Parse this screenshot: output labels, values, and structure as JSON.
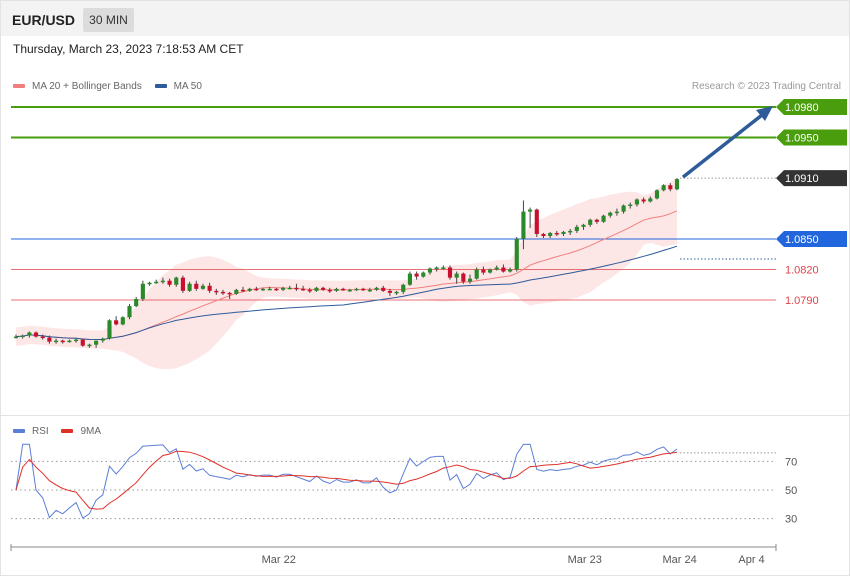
{
  "header": {
    "symbol": "EUR/USD",
    "interval": "30 MIN",
    "datetime": "Thursday, March 23, 2023 7:18:53 AM CET"
  },
  "legend": {
    "price": [
      {
        "label": "MA 20 + Bollinger Bands",
        "color": "#f08080"
      },
      {
        "label": "MA 50",
        "color": "#2e5b9a"
      }
    ],
    "rsi": [
      {
        "label": "RSI",
        "color": "#5b7fd6"
      },
      {
        "label": "9MA",
        "color": "#e0302a"
      }
    ],
    "credit": "Research © 2023 Trading Central"
  },
  "chart_data": {
    "type": "candlestick",
    "price_range": [
      1.0725,
      1.0995
    ],
    "levels": [
      {
        "value": 1.098,
        "label": "1.0980",
        "kind": "resistance",
        "color": "#4a9e0e"
      },
      {
        "value": 1.095,
        "label": "1.0950",
        "kind": "resistance",
        "color": "#4a9e0e"
      },
      {
        "value": 1.091,
        "label": "1.0910",
        "kind": "current",
        "color": "#333333"
      },
      {
        "value": 1.085,
        "label": "1.0850",
        "kind": "pivot",
        "color": "#2266dd"
      },
      {
        "value": 1.082,
        "label": "1.0820",
        "kind": "support",
        "color": "#e2424a"
      },
      {
        "value": 1.079,
        "label": "1.0790",
        "kind": "support",
        "color": "#e2424a"
      }
    ],
    "target_arrow": {
      "from": 1.091,
      "to": 1.098
    },
    "candles": [
      [
        1.0754,
        1.0756,
        1.0752,
        1.0754
      ],
      [
        1.0754,
        1.0756,
        1.0752,
        1.0755
      ],
      [
        1.0755,
        1.0759,
        1.0753,
        1.0758
      ],
      [
        1.0758,
        1.0759,
        1.0753,
        1.0754
      ],
      [
        1.0754,
        1.0756,
        1.0751,
        1.0753
      ],
      [
        1.0753,
        1.0755,
        1.0747,
        1.0749
      ],
      [
        1.0749,
        1.0752,
        1.0747,
        1.075
      ],
      [
        1.075,
        1.0751,
        1.0747,
        1.0749
      ],
      [
        1.0749,
        1.0751,
        1.0748,
        1.075
      ],
      [
        1.075,
        1.0752,
        1.0748,
        1.0751
      ],
      [
        1.0751,
        1.0752,
        1.0744,
        1.0745
      ],
      [
        1.0745,
        1.0747,
        1.0743,
        1.0746
      ],
      [
        1.0746,
        1.075,
        1.0743,
        1.075
      ],
      [
        1.075,
        1.0753,
        1.0748,
        1.0752
      ],
      [
        1.0752,
        1.0771,
        1.0751,
        1.077
      ],
      [
        1.077,
        1.0774,
        1.0765,
        1.0766
      ],
      [
        1.0766,
        1.0774,
        1.0765,
        1.0773
      ],
      [
        1.0773,
        1.0786,
        1.0771,
        1.0784
      ],
      [
        1.0784,
        1.0793,
        1.0783,
        1.0791
      ],
      [
        1.0791,
        1.0809,
        1.0789,
        1.0806
      ],
      [
        1.0806,
        1.0808,
        1.0804,
        1.0807
      ],
      [
        1.0807,
        1.081,
        1.0806,
        1.0808
      ],
      [
        1.0808,
        1.0812,
        1.0806,
        1.0809
      ],
      [
        1.0809,
        1.0811,
        1.0803,
        1.0805
      ],
      [
        1.0805,
        1.0813,
        1.0803,
        1.0812
      ],
      [
        1.0812,
        1.0814,
        1.0797,
        1.0799
      ],
      [
        1.0799,
        1.0808,
        1.0798,
        1.0806
      ],
      [
        1.0806,
        1.0809,
        1.0799,
        1.0801
      ],
      [
        1.0801,
        1.0806,
        1.08,
        1.0804
      ],
      [
        1.0804,
        1.0807,
        1.0797,
        1.0799
      ],
      [
        1.0799,
        1.0801,
        1.0795,
        1.0798
      ],
      [
        1.0798,
        1.08,
        1.0795,
        1.0797
      ],
      [
        1.0797,
        1.0798,
        1.0791,
        1.0796
      ],
      [
        1.0796,
        1.0801,
        1.0795,
        1.08
      ],
      [
        1.08,
        1.0803,
        1.0798,
        1.0799
      ],
      [
        1.0799,
        1.0802,
        1.0798,
        1.0801
      ],
      [
        1.0801,
        1.0803,
        1.0799,
        1.08
      ],
      [
        1.08,
        1.0802,
        1.0799,
        1.0801
      ],
      [
        1.0801,
        1.0803,
        1.08,
        1.0801
      ],
      [
        1.0801,
        1.0802,
        1.0799,
        1.08
      ],
      [
        1.08,
        1.0803,
        1.0799,
        1.0802
      ],
      [
        1.0802,
        1.0804,
        1.0801,
        1.0802
      ],
      [
        1.0802,
        1.0806,
        1.0799,
        1.0801
      ],
      [
        1.0801,
        1.0804,
        1.0799,
        1.08
      ],
      [
        1.08,
        1.0802,
        1.0797,
        1.0799
      ],
      [
        1.0799,
        1.0803,
        1.0798,
        1.0802
      ],
      [
        1.0802,
        1.0803,
        1.0799,
        1.08
      ],
      [
        1.08,
        1.0802,
        1.0797,
        1.0799
      ],
      [
        1.0799,
        1.0802,
        1.0798,
        1.0801
      ],
      [
        1.0801,
        1.0802,
        1.0799,
        1.08
      ],
      [
        1.08,
        1.0801,
        1.0798,
        1.08
      ],
      [
        1.08,
        1.0802,
        1.0799,
        1.0801
      ],
      [
        1.0801,
        1.0802,
        1.0799,
        1.08
      ],
      [
        1.08,
        1.0802,
        1.0798,
        1.08
      ],
      [
        1.08,
        1.0803,
        1.0799,
        1.0802
      ],
      [
        1.0802,
        1.0804,
        1.0798,
        1.0799
      ],
      [
        1.0799,
        1.0801,
        1.0794,
        1.0797
      ],
      [
        1.0797,
        1.0799,
        1.0795,
        1.0798
      ],
      [
        1.0798,
        1.0806,
        1.0796,
        1.0805
      ],
      [
        1.0805,
        1.0818,
        1.0804,
        1.0816
      ],
      [
        1.0816,
        1.0818,
        1.081,
        1.0813
      ],
      [
        1.0813,
        1.0818,
        1.0812,
        1.0817
      ],
      [
        1.0817,
        1.0822,
        1.0815,
        1.0821
      ],
      [
        1.0821,
        1.0823,
        1.0818,
        1.0822
      ],
      [
        1.0822,
        1.0824,
        1.082,
        1.0822
      ],
      [
        1.0822,
        1.0824,
        1.081,
        1.0812
      ],
      [
        1.0812,
        1.0818,
        1.0806,
        1.0816
      ],
      [
        1.0816,
        1.0817,
        1.0806,
        1.0808
      ],
      [
        1.0808,
        1.0815,
        1.0806,
        1.0811
      ],
      [
        1.0811,
        1.0822,
        1.081,
        1.082
      ],
      [
        1.082,
        1.0823,
        1.0815,
        1.0817
      ],
      [
        1.0817,
        1.0821,
        1.0816,
        1.082
      ],
      [
        1.082,
        1.0824,
        1.0819,
        1.0822
      ],
      [
        1.0822,
        1.0825,
        1.0817,
        1.0818
      ],
      [
        1.0818,
        1.0822,
        1.0817,
        1.082
      ],
      [
        1.082,
        1.0852,
        1.0818,
        1.085
      ],
      [
        1.085,
        1.0888,
        1.084,
        1.0877
      ],
      [
        1.0877,
        1.0881,
        1.0861,
        1.0879
      ],
      [
        1.0879,
        1.088,
        1.0852,
        1.0855
      ],
      [
        1.0855,
        1.0856,
        1.0851,
        1.0853
      ],
      [
        1.0853,
        1.0857,
        1.0851,
        1.0856
      ],
      [
        1.0856,
        1.0858,
        1.0853,
        1.0855
      ],
      [
        1.0855,
        1.0858,
        1.0853,
        1.0857
      ],
      [
        1.0857,
        1.086,
        1.0854,
        1.0858
      ],
      [
        1.0858,
        1.0864,
        1.0856,
        1.0862
      ],
      [
        1.0862,
        1.0865,
        1.0859,
        1.0864
      ],
      [
        1.0864,
        1.087,
        1.0862,
        1.0869
      ],
      [
        1.0869,
        1.087,
        1.0865,
        1.0867
      ],
      [
        1.0867,
        1.0874,
        1.0866,
        1.0873
      ],
      [
        1.0873,
        1.0877,
        1.0871,
        1.0876
      ],
      [
        1.0876,
        1.088,
        1.0873,
        1.0877
      ],
      [
        1.0877,
        1.0884,
        1.0875,
        1.0883
      ],
      [
        1.0883,
        1.0886,
        1.088,
        1.0884
      ],
      [
        1.0884,
        1.089,
        1.0882,
        1.0889
      ],
      [
        1.0889,
        1.0891,
        1.0885,
        1.0887
      ],
      [
        1.0887,
        1.0892,
        1.0886,
        1.089
      ],
      [
        1.089,
        1.0899,
        1.0889,
        1.0898
      ],
      [
        1.0898,
        1.0904,
        1.0897,
        1.0903
      ],
      [
        1.0903,
        1.0905,
        1.0897,
        1.0899
      ],
      [
        1.0899,
        1.091,
        1.0898,
        1.0909
      ]
    ],
    "rsi": {
      "levels": [
        70,
        50,
        30
      ],
      "range": [
        15,
        85
      ]
    },
    "x_labels": [
      {
        "label": "Mar 22",
        "pos": 0.35
      },
      {
        "label": "Mar 23",
        "pos": 0.75
      },
      {
        "label": "Mar 24",
        "pos": 0.874
      },
      {
        "label": "Apr 4",
        "pos": 0.968
      }
    ]
  }
}
